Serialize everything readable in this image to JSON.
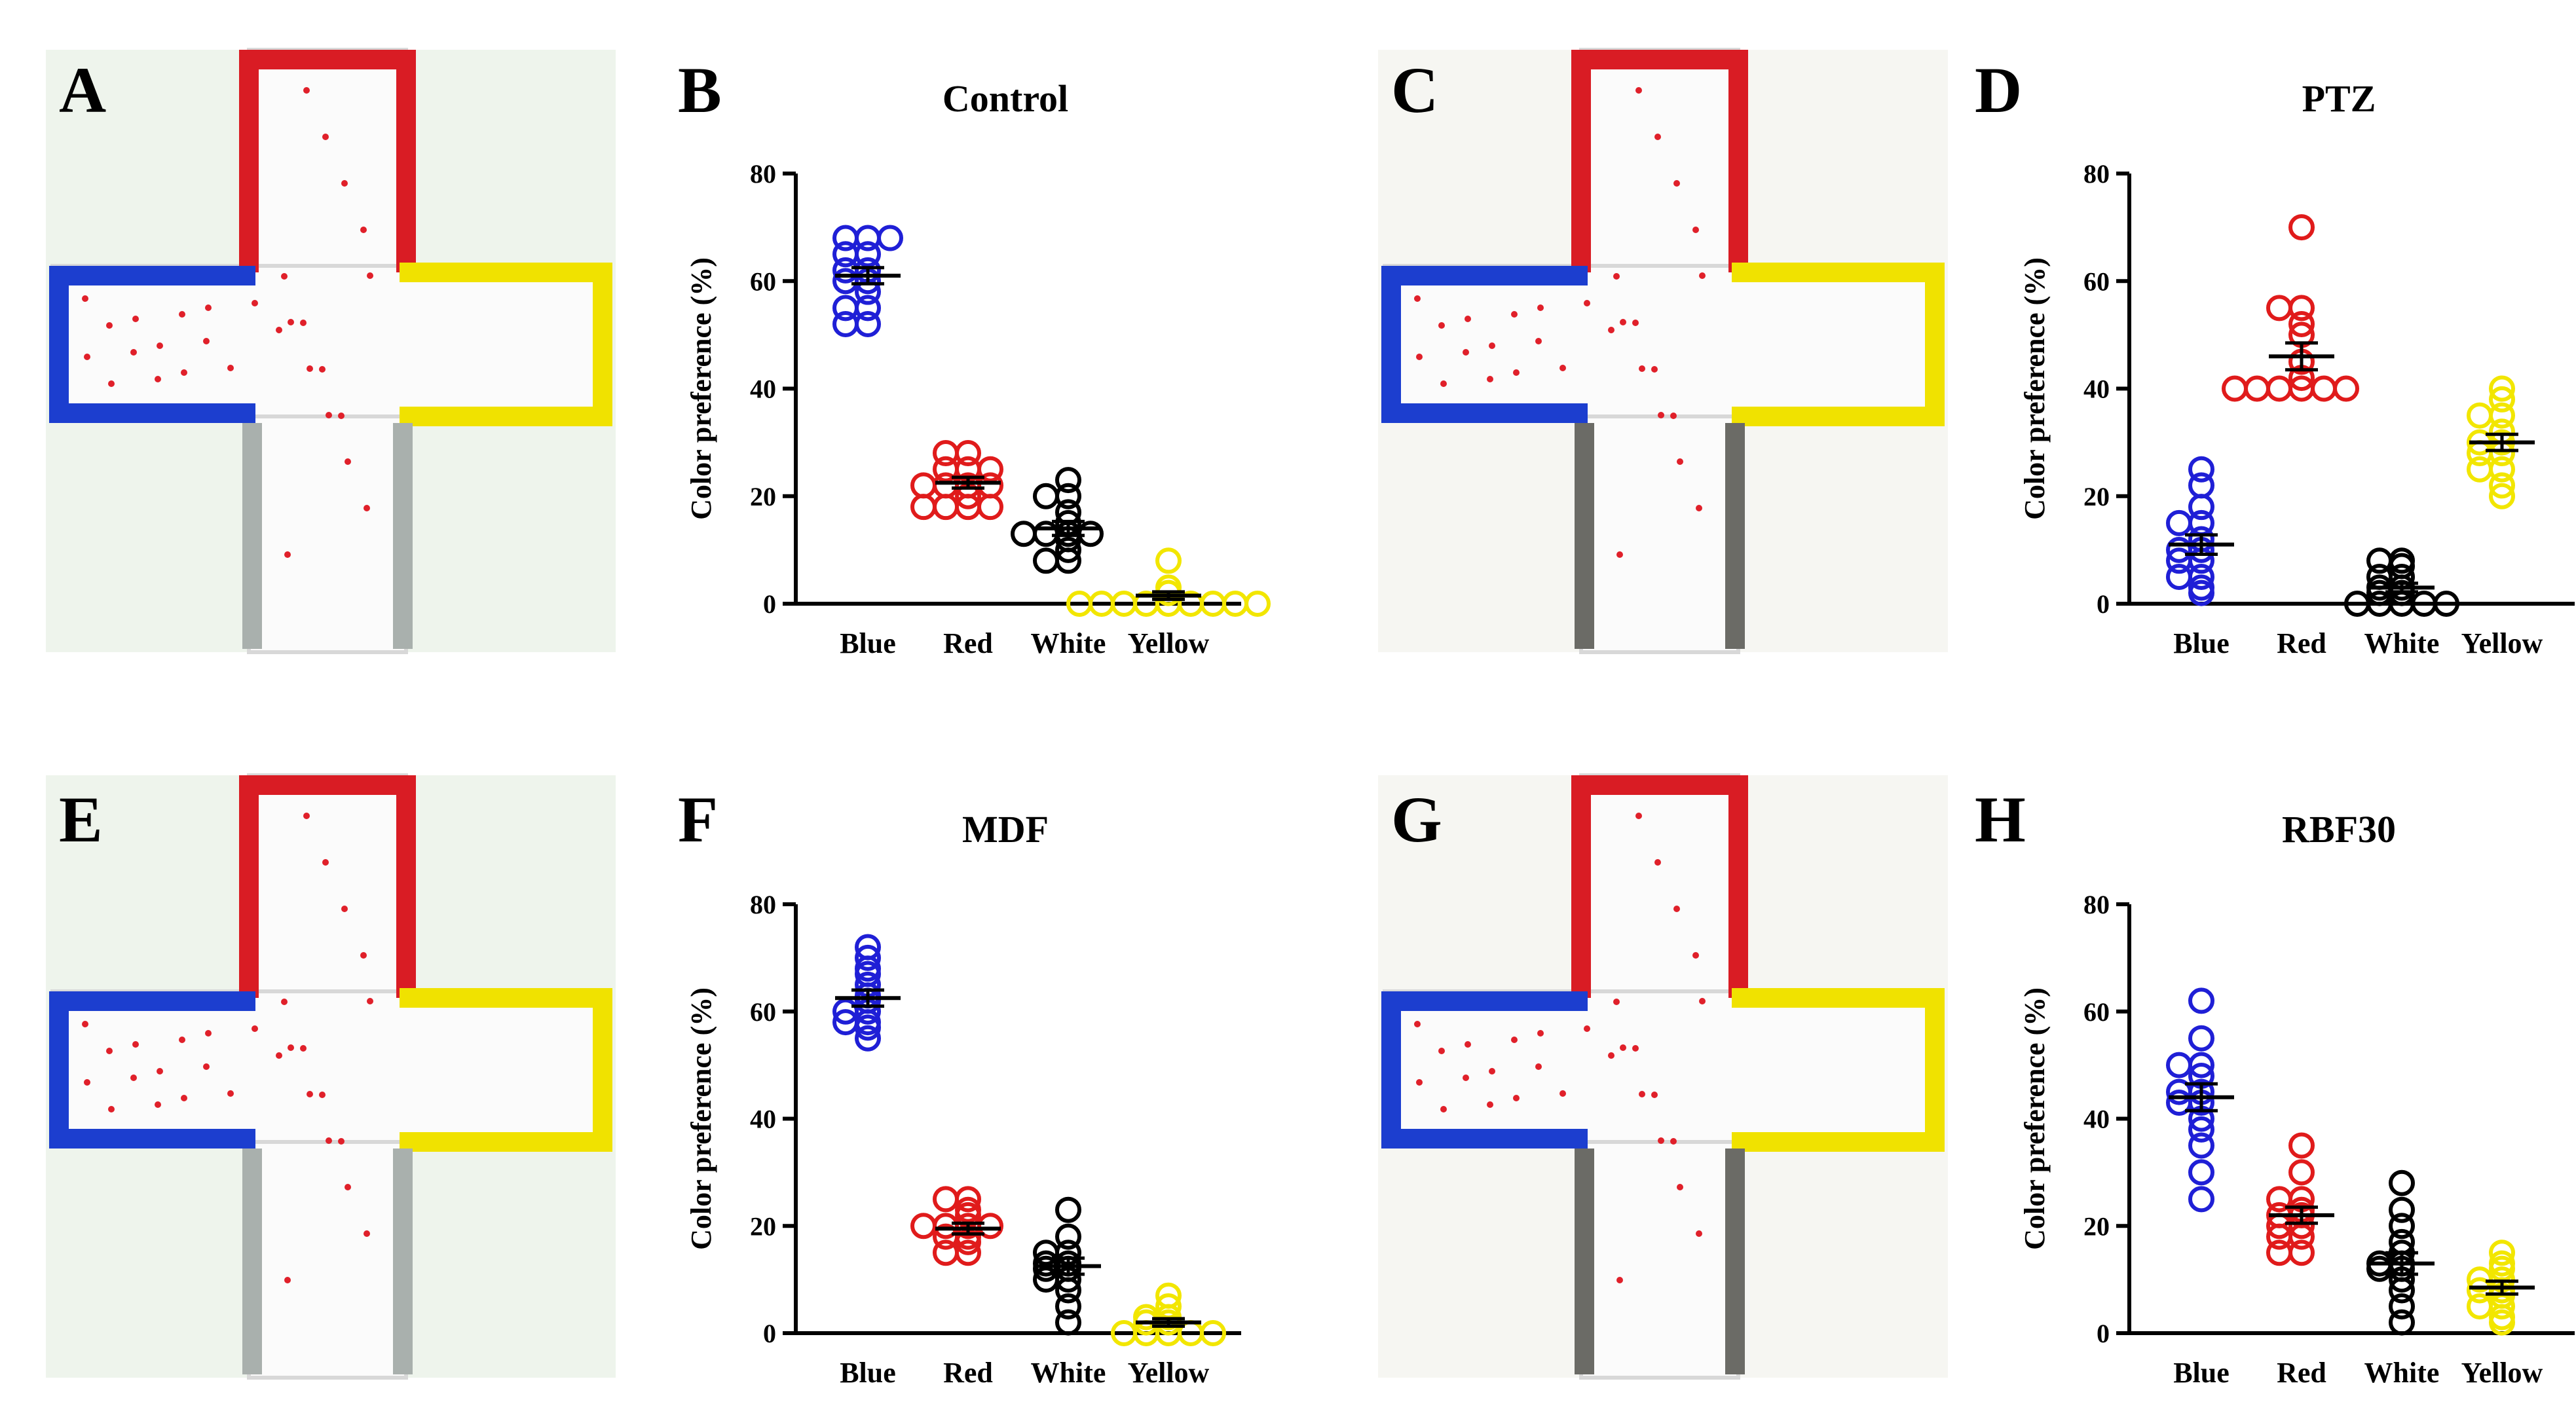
{
  "panel_labels": [
    "A",
    "B",
    "C",
    "D",
    "E",
    "F",
    "G",
    "H"
  ],
  "chart_data": [
    {
      "type": "dot",
      "title": "Control",
      "y_label": "Color preference (%)",
      "categories": [
        "Blue",
        "Red",
        "White",
        "Yellow"
      ],
      "colors": [
        "#1f1fd6",
        "#e01b1b",
        "#000000",
        "#f2e600"
      ],
      "points": [
        [
          68,
          68,
          68,
          65,
          65,
          62,
          62,
          60,
          60,
          58,
          55,
          55,
          52,
          52
        ],
        [
          28,
          28,
          25,
          25,
          25,
          22,
          22,
          22,
          22,
          20,
          18,
          18,
          18,
          18
        ],
        [
          23,
          20,
          20,
          17,
          15,
          13,
          13,
          13,
          13,
          12,
          10,
          8,
          8
        ],
        [
          8,
          3,
          2,
          0,
          0,
          0,
          0,
          0,
          0,
          0,
          0,
          0
        ]
      ],
      "means": [
        61,
        22.5,
        14,
        1.5
      ],
      "errors": [
        1.5,
        1,
        1.3,
        0.7
      ],
      "ylim": [
        0,
        80
      ],
      "yticks": [
        0,
        20,
        40,
        60,
        80
      ]
    },
    {
      "type": "dot",
      "title": "PTZ",
      "y_label": "Color preference (%)",
      "categories": [
        "Blue",
        "Red",
        "White",
        "Yellow"
      ],
      "colors": [
        "#1f1fd6",
        "#e01b1b",
        "#000000",
        "#f2e600"
      ],
      "points": [
        [
          25,
          22,
          18,
          15,
          15,
          12,
          10,
          10,
          8,
          8,
          5,
          5,
          3,
          2
        ],
        [
          70,
          55,
          55,
          52,
          50,
          45,
          42,
          40,
          40,
          40,
          40,
          40,
          40
        ],
        [
          8,
          8,
          7,
          5,
          5,
          3,
          3,
          2,
          2,
          0,
          0,
          0,
          0,
          0
        ],
        [
          40,
          38,
          35,
          35,
          32,
          30,
          30,
          28,
          28,
          25,
          25,
          22,
          20
        ]
      ],
      "means": [
        11,
        46,
        3,
        30
      ],
      "errors": [
        1.8,
        2.5,
        0.8,
        1.5
      ],
      "ylim": [
        0,
        80
      ],
      "yticks": [
        0,
        20,
        40,
        60,
        80
      ]
    },
    {
      "type": "dot",
      "title": "MDF",
      "y_label": "Color preference (%)",
      "categories": [
        "Blue",
        "Red",
        "White",
        "Yellow"
      ],
      "colors": [
        "#1f1fd6",
        "#e01b1b",
        "#000000",
        "#f2e600"
      ],
      "points": [
        [
          72,
          70,
          68,
          67,
          65,
          63,
          62,
          60,
          60,
          58,
          58,
          57,
          55
        ],
        [
          25,
          25,
          23,
          22,
          20,
          20,
          20,
          20,
          18,
          18,
          17,
          15,
          15
        ],
        [
          23,
          18,
          15,
          15,
          13,
          13,
          12,
          12,
          10,
          10,
          8,
          5,
          2
        ],
        [
          7,
          5,
          3,
          3,
          2,
          2,
          0,
          0,
          0,
          0,
          0
        ]
      ],
      "means": [
        62.5,
        19.5,
        12.5,
        2
      ],
      "errors": [
        1.5,
        1,
        1.5,
        0.7
      ],
      "ylim": [
        0,
        80
      ],
      "yticks": [
        0,
        20,
        40,
        60,
        80
      ]
    },
    {
      "type": "dot",
      "title": "RBF30",
      "y_label": "Color preference (%)",
      "categories": [
        "Blue",
        "Red",
        "White",
        "Yellow"
      ],
      "colors": [
        "#1f1fd6",
        "#e01b1b",
        "#000000",
        "#f2e600"
      ],
      "points": [
        [
          62,
          55,
          50,
          50,
          48,
          45,
          45,
          43,
          43,
          40,
          38,
          35,
          30,
          25
        ],
        [
          35,
          30,
          25,
          25,
          23,
          22,
          22,
          20,
          20,
          18,
          18,
          15,
          15
        ],
        [
          28,
          23,
          20,
          17,
          15,
          13,
          13,
          12,
          12,
          10,
          8,
          5,
          2
        ],
        [
          15,
          13,
          12,
          10,
          10,
          8,
          8,
          7,
          5,
          5,
          3,
          2
        ]
      ],
      "means": [
        44,
        22,
        13,
        8.5
      ],
      "errors": [
        2.5,
        1.5,
        2,
        1.2
      ],
      "ylim": [
        0,
        80
      ],
      "yticks": [
        0,
        20,
        40,
        60,
        80
      ]
    }
  ]
}
